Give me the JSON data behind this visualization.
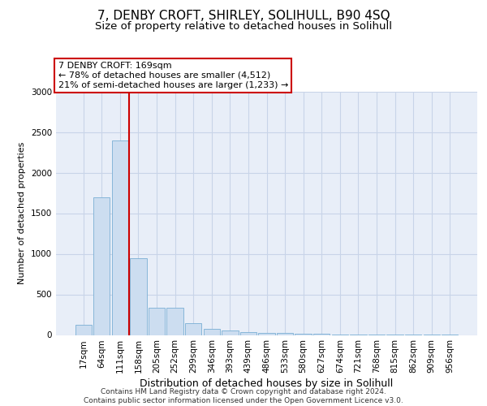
{
  "title1": "7, DENBY CROFT, SHIRLEY, SOLIHULL, B90 4SQ",
  "title2": "Size of property relative to detached houses in Solihull",
  "xlabel": "Distribution of detached houses by size in Solihull",
  "ylabel": "Number of detached properties",
  "categories": [
    "17sqm",
    "64sqm",
    "111sqm",
    "158sqm",
    "205sqm",
    "252sqm",
    "299sqm",
    "346sqm",
    "393sqm",
    "439sqm",
    "486sqm",
    "533sqm",
    "580sqm",
    "627sqm",
    "674sqm",
    "721sqm",
    "768sqm",
    "815sqm",
    "862sqm",
    "909sqm",
    "956sqm"
  ],
  "values": [
    130,
    1700,
    2400,
    950,
    340,
    340,
    150,
    80,
    55,
    40,
    30,
    25,
    18,
    12,
    8,
    5,
    3,
    2,
    1,
    1,
    1
  ],
  "bar_color": "#ccddf0",
  "bar_edge_color": "#7aafd4",
  "red_line_index": 2.5,
  "annotation_line1": "7 DENBY CROFT: 169sqm",
  "annotation_line2": "← 78% of detached houses are smaller (4,512)",
  "annotation_line3": "21% of semi-detached houses are larger (1,233) →",
  "annotation_box_color": "#ffffff",
  "annotation_box_edge": "#cc0000",
  "ylim": [
    0,
    3000
  ],
  "yticks": [
    0,
    500,
    1000,
    1500,
    2000,
    2500,
    3000
  ],
  "footer1": "Contains HM Land Registry data © Crown copyright and database right 2024.",
  "footer2": "Contains public sector information licensed under the Open Government Licence v3.0.",
  "bg_color": "#ffffff",
  "plot_bg_color": "#e8eef8",
  "grid_color": "#c8d4e8",
  "title1_fontsize": 11,
  "title2_fontsize": 9.5,
  "ylabel_fontsize": 8,
  "xlabel_fontsize": 9,
  "tick_fontsize": 7.5,
  "annot_fontsize": 8,
  "footer_fontsize": 6.5
}
